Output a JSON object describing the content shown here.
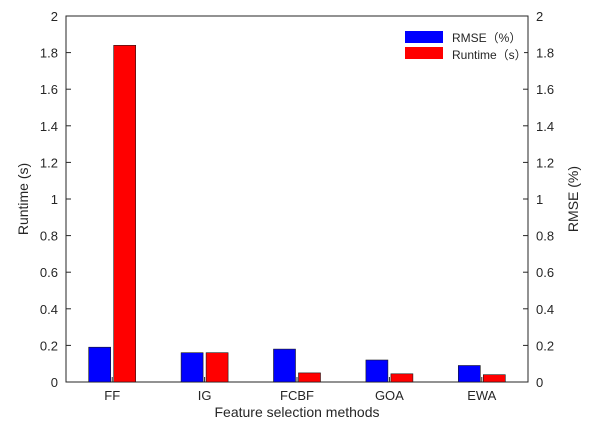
{
  "chart_data": {
    "type": "bar",
    "categories": [
      "FF",
      "IG",
      "FCBF",
      "GOA",
      "EWA"
    ],
    "series": [
      {
        "name": "RMSE（%）",
        "axis": "right",
        "color": "#0000FF",
        "values": [
          0.19,
          0.16,
          0.18,
          0.12,
          0.09
        ]
      },
      {
        "name": "Runtime（s）",
        "axis": "left",
        "color": "#FF0000",
        "values": [
          1.84,
          0.16,
          0.05,
          0.045,
          0.04
        ]
      }
    ],
    "xlabel": "Feature selection methods",
    "ylabel_left": "Runtime (s)",
    "ylabel_right": "RMSE (%)",
    "ylim_left": [
      0,
      2
    ],
    "ylim_right": [
      0,
      2
    ],
    "yticks": [
      "0",
      "0.2",
      "0.4",
      "0.6",
      "0.8",
      "1",
      "1.2",
      "1.4",
      "1.6",
      "1.8",
      "2"
    ],
    "grid": false,
    "legend_position": "top-right"
  }
}
